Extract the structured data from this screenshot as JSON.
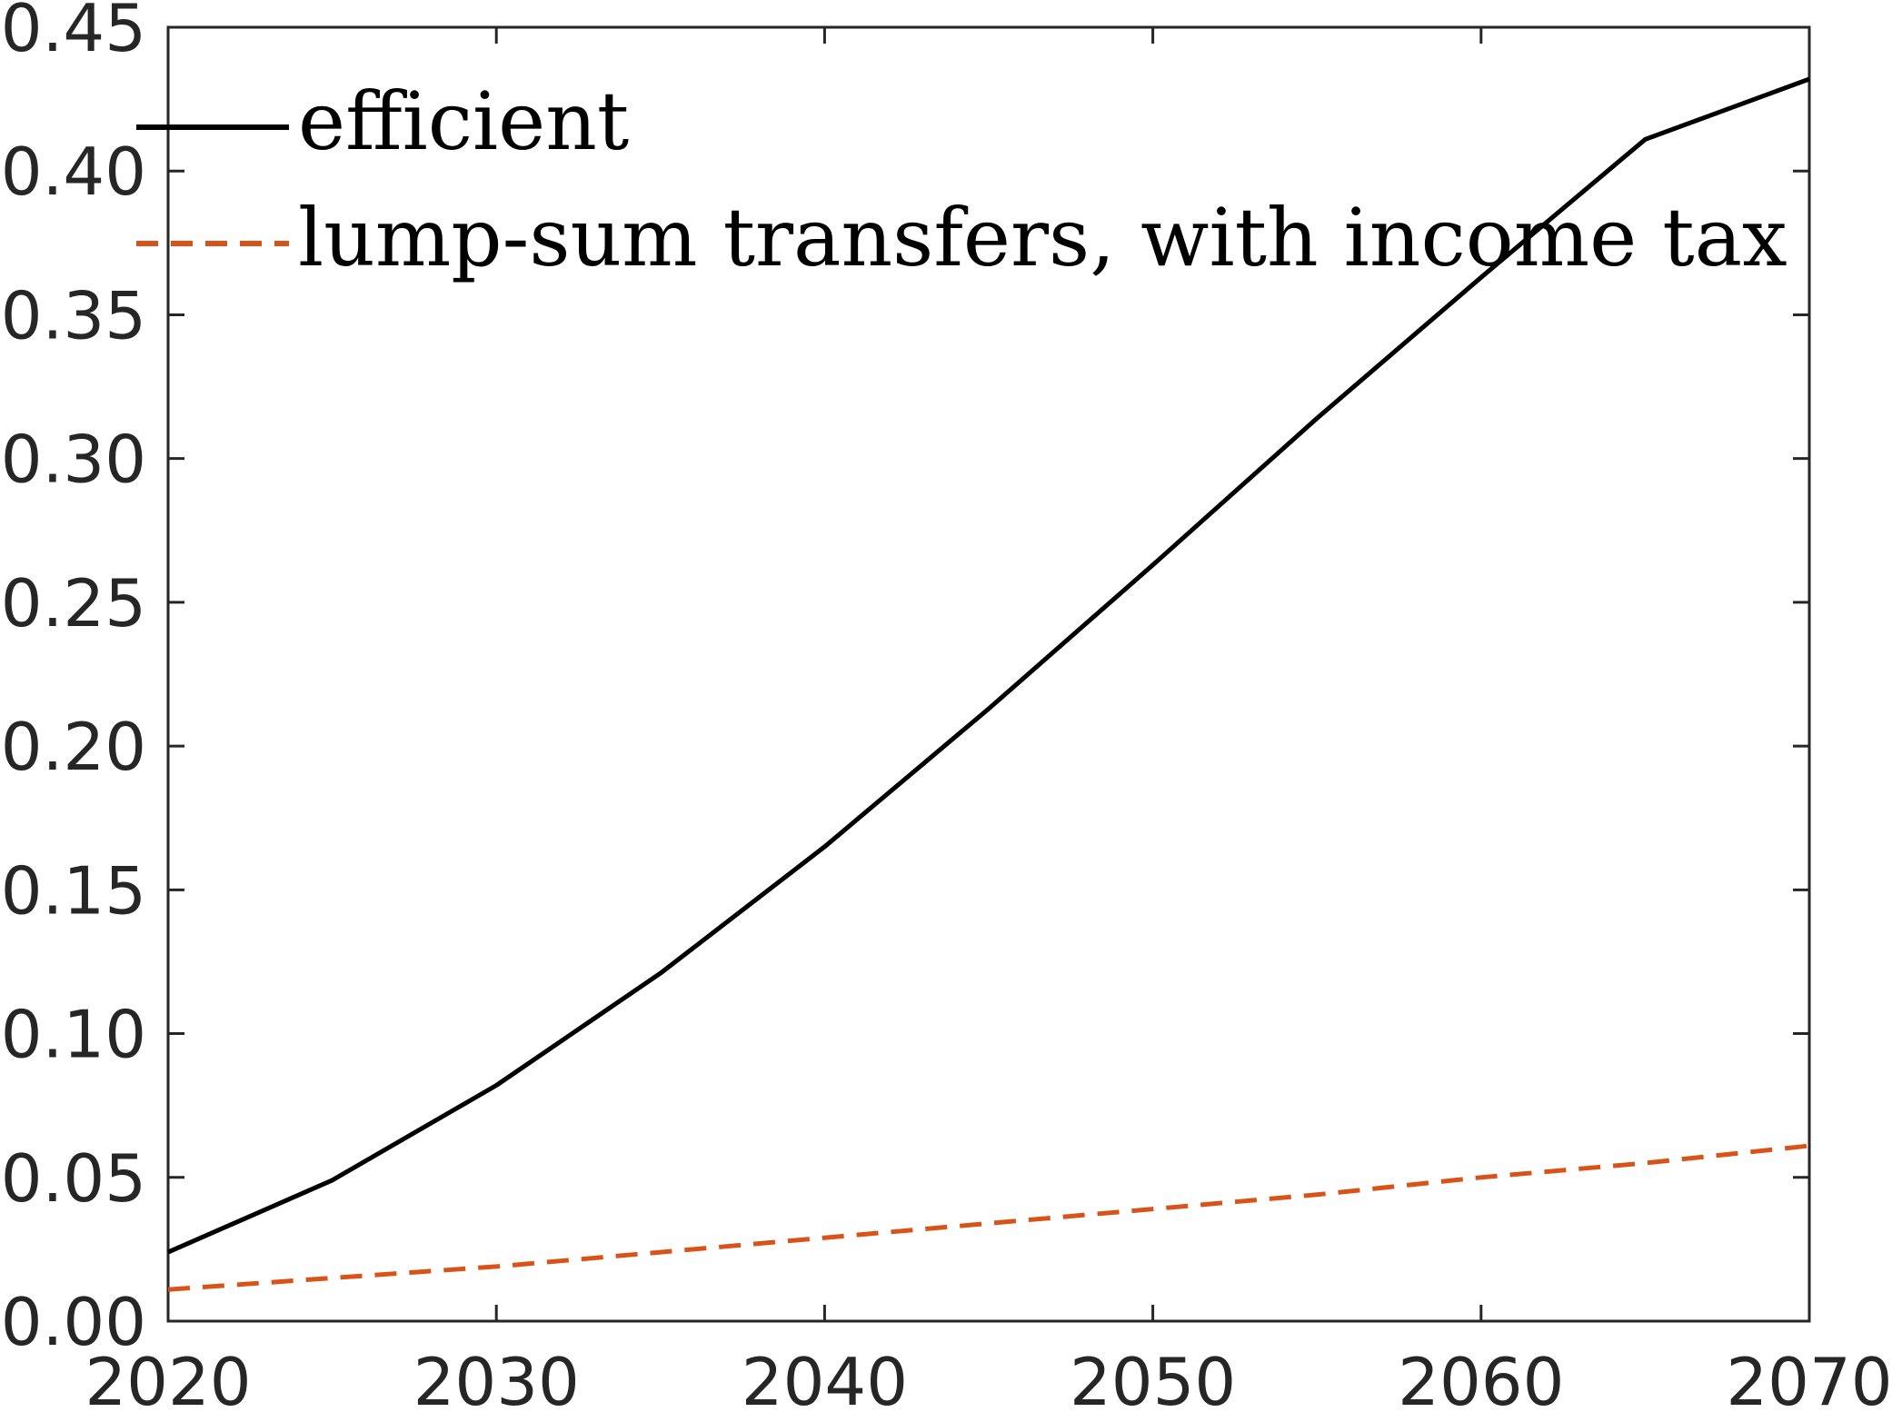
{
  "chart_data": {
    "type": "line",
    "title": "",
    "xlabel": "",
    "ylabel": "",
    "xlim": [
      2020,
      2070
    ],
    "ylim": [
      0,
      0.45
    ],
    "xticks": [
      2020,
      2030,
      2040,
      2050,
      2060,
      2070
    ],
    "xtick_labels": [
      "2020",
      "2030",
      "2040",
      "2050",
      "2060",
      "2070"
    ],
    "yticks": [
      0,
      0.05,
      0.1,
      0.15,
      0.2,
      0.25,
      0.3,
      0.35,
      0.4,
      0.45
    ],
    "ytick_labels": [
      "0.00",
      "0.05",
      "0.10",
      "0.15",
      "0.20",
      "0.25",
      "0.30",
      "0.35",
      "0.40",
      "0.45"
    ],
    "grid": false,
    "legend_position": "top-left",
    "x": [
      2020,
      2025,
      2030,
      2035,
      2040,
      2045,
      2050,
      2055,
      2060,
      2065,
      2070
    ],
    "series": [
      {
        "name": "efficient",
        "style": "solid",
        "color": "#000000",
        "values": [
          0.024,
          0.049,
          0.082,
          0.121,
          0.165,
          0.213,
          0.263,
          0.314,
          0.363,
          0.411,
          0.432
        ]
      },
      {
        "name": "lump-sum transfers, with income tax",
        "style": "dashed",
        "color": "#D95319",
        "values": [
          0.011,
          0.015,
          0.019,
          0.024,
          0.029,
          0.034,
          0.039,
          0.044,
          0.05,
          0.055,
          0.061
        ]
      }
    ]
  }
}
